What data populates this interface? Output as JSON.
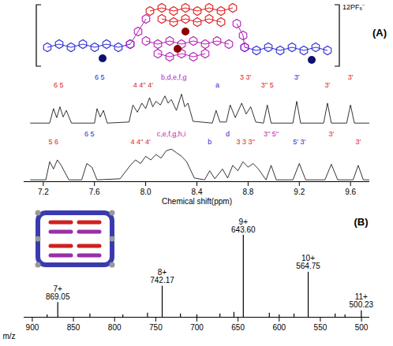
{
  "structure": {
    "label": "12PF₆⁻"
  },
  "chart_data": [
    {
      "type": "line",
      "title": "(A)",
      "x_label": "Chemical shift(ppm)",
      "xlim": [
        7.05,
        9.75
      ],
      "xticks": [
        7.2,
        7.6,
        {
          "value": 8,
          "label": "8.0"
        },
        8.4,
        8.8,
        9.2,
        9.6
      ],
      "ylim": [
        0,
        100
      ],
      "tick_labels": "x",
      "series": [
        {
          "color": "#000000",
          "x": [
            7.1,
            7.25,
            7.28,
            7.305,
            7.33,
            7.355,
            7.38,
            7.42,
            7.6,
            7.62,
            7.645,
            7.67,
            7.7,
            7.87,
            7.9,
            7.935,
            7.97,
            8.0,
            8.03,
            8.055,
            8.08,
            8.115,
            8.15,
            8.175,
            8.2,
            8.24,
            8.28,
            8.305,
            8.33,
            8.37,
            8.52,
            8.55,
            8.58,
            8.63,
            8.66,
            8.7,
            8.75,
            8.785,
            8.82,
            8.86,
            8.92,
            8.95,
            8.98,
            9.15,
            9.18,
            9.21,
            9.39,
            9.42,
            9.45,
            9.57,
            9.6,
            9.63,
            9.75
          ],
          "values": [
            5,
            5,
            45,
            20,
            50,
            22,
            40,
            5,
            5,
            45,
            22,
            40,
            5,
            8,
            55,
            35,
            60,
            45,
            75,
            50,
            65,
            55,
            80,
            60,
            70,
            40,
            85,
            50,
            60,
            10,
            5,
            40,
            8,
            8,
            55,
            20,
            60,
            30,
            50,
            8,
            5,
            55,
            5,
            5,
            65,
            5,
            5,
            60,
            5,
            5,
            55,
            5,
            5
          ],
          "labels": [
            {
              "x": 7.32,
              "text": "6 5",
              "color": "#e0191b"
            },
            {
              "x": 7.64,
              "text": "6 5",
              "color": "#2b2bd6"
            },
            {
              "x": 7.98,
              "text": "4 4'' 4'",
              "color": "#e0191b"
            },
            {
              "x": 8.22,
              "text": "b,d,e,f,g",
              "color": "#b51fb5"
            },
            {
              "x": 8.56,
              "text": "a",
              "color": "#2b2bd6"
            },
            {
              "x": 8.78,
              "text": "3 3'",
              "color": "#e0191b"
            },
            {
              "x": 8.95,
              "text": "3'' 5",
              "color": "#e0191b"
            },
            {
              "x": 9.18,
              "text": "3'",
              "color": "#2b2bd6"
            },
            {
              "x": 9.42,
              "text": "3'",
              "color": "#e0191b"
            },
            {
              "x": 9.6,
              "text": "3'",
              "color": "#e0191b"
            }
          ]
        },
        {
          "color": "#000000",
          "x": [
            7.1,
            7.22,
            7.25,
            7.28,
            7.31,
            7.34,
            7.4,
            7.5,
            7.54,
            7.58,
            7.62,
            7.8,
            7.88,
            7.92,
            7.96,
            8.0,
            8.04,
            8.08,
            8.12,
            8.16,
            8.2,
            8.24,
            8.28,
            8.32,
            8.38,
            8.46,
            8.5,
            8.54,
            8.6,
            8.64,
            8.68,
            8.72,
            8.76,
            8.8,
            8.84,
            8.88,
            8.94,
            8.98,
            9.02,
            9.15,
            9.2,
            9.25,
            9.4,
            9.45,
            9.5,
            9.62,
            9.66,
            9.7,
            9.75
          ],
          "values": [
            5,
            5,
            55,
            35,
            60,
            45,
            5,
            5,
            50,
            40,
            5,
            8,
            45,
            60,
            50,
            70,
            60,
            75,
            65,
            85,
            90,
            80,
            70,
            55,
            10,
            5,
            30,
            8,
            35,
            10,
            45,
            30,
            55,
            40,
            50,
            35,
            5,
            45,
            5,
            5,
            50,
            5,
            5,
            48,
            5,
            5,
            45,
            5,
            5
          ],
          "labels": [
            {
              "x": 7.28,
              "text": "5 6",
              "color": "#e0191b"
            },
            {
              "x": 7.56,
              "text": "6 5",
              "color": "#2b2bd6"
            },
            {
              "x": 7.96,
              "text": "4 4'' 4'",
              "color": "#e0191b"
            },
            {
              "x": 8.2,
              "text": "c,e,f,g,h,i",
              "color": "#b51fb5"
            },
            {
              "x": 8.5,
              "text": "b",
              "color": "#2b2bd6"
            },
            {
              "x": 8.64,
              "text": "d",
              "color": "#2b2bd6"
            },
            {
              "x": 8.78,
              "text": "3 3 3''",
              "color": "#e0191b"
            },
            {
              "x": 8.98,
              "text": "3'' 5''",
              "color": "#b51fb5"
            },
            {
              "x": 9.2,
              "text": "5' 3'",
              "color": "#2b2bd6"
            },
            {
              "x": 9.45,
              "text": "3'",
              "color": "#e0191b"
            },
            {
              "x": 9.66,
              "text": "3'",
              "color": "#e0191b"
            }
          ]
        }
      ]
    },
    {
      "type": "bar",
      "title": "(B)",
      "x_label": "m/z",
      "xlim": [
        910,
        490
      ],
      "xticks": [
        900,
        850,
        800,
        750,
        700,
        650,
        600,
        550,
        500
      ],
      "ylim": [
        0,
        125
      ],
      "tick_labels": "x",
      "color": "#000000",
      "peaks": [
        {
          "mz": 500.23,
          "intensity": 8,
          "charge": "11+",
          "label": "500.23"
        },
        {
          "mz": 520,
          "intensity": 3
        },
        {
          "mz": 532,
          "intensity": 4
        },
        {
          "mz": 564.75,
          "intensity": 55,
          "charge": "10+",
          "label": "564.75"
        },
        {
          "mz": 582,
          "intensity": 4
        },
        {
          "mz": 600,
          "intensity": 3
        },
        {
          "mz": 612,
          "intensity": 5
        },
        {
          "mz": 643.6,
          "intensity": 100,
          "charge": "9+",
          "label": "643.60"
        },
        {
          "mz": 655,
          "intensity": 6
        },
        {
          "mz": 672,
          "intensity": 4
        },
        {
          "mz": 700,
          "intensity": 3
        },
        {
          "mz": 720,
          "intensity": 4
        },
        {
          "mz": 742.17,
          "intensity": 38,
          "charge": "8+",
          "label": "742.17"
        },
        {
          "mz": 760,
          "intensity": 5
        },
        {
          "mz": 790,
          "intensity": 3
        },
        {
          "mz": 830,
          "intensity": 4
        },
        {
          "mz": 869.05,
          "intensity": 18,
          "charge": "7+",
          "label": "869.05"
        },
        {
          "mz": 882,
          "intensity": 3
        }
      ]
    }
  ]
}
